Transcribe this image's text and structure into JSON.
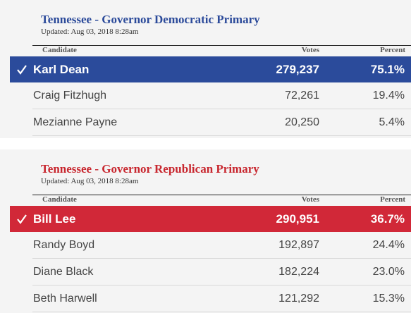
{
  "races": [
    {
      "title": "Tennessee - Governor Democratic Primary",
      "updated": "Updated: Aug 03, 2018 8:28am",
      "headers": [
        "Candidate",
        "Votes",
        "Percent"
      ],
      "rows": [
        [
          "Karl Dean",
          "279,237",
          "75.1%"
        ],
        [
          "Craig Fitzhugh",
          "72,261",
          "19.4%"
        ],
        [
          "Mezianne Payne",
          "20,250",
          "5.4%"
        ]
      ]
    },
    {
      "title": "Tennessee - Governor Republican Primary",
      "updated": "Updated: Aug 03, 2018 8:28am",
      "headers": [
        "Candidate",
        "Votes",
        "Percent"
      ],
      "rows": [
        [
          "Bill Lee",
          "290,951",
          "36.7%"
        ],
        [
          "Randy Boyd",
          "192,897",
          "24.4%"
        ],
        [
          "Diane Black",
          "182,224",
          "23.0%"
        ],
        [
          "Beth Harwell",
          "121,292",
          "15.3%"
        ]
      ]
    }
  ]
}
